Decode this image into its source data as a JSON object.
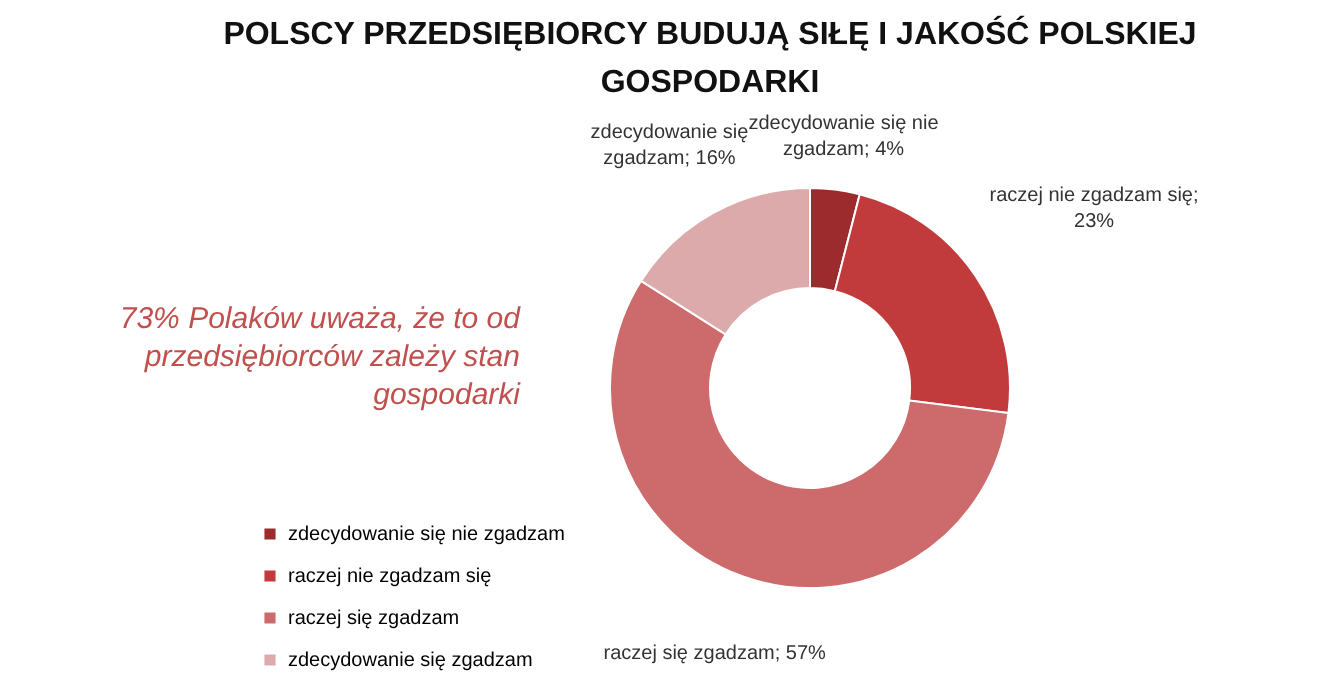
{
  "chart_data": {
    "type": "donut",
    "title": "POLSCY PRZEDSIĘBIORCY BUDUJĄ SIŁĘ I JAKOŚĆ POLSKIEJ GOSPODARKI",
    "categories": [
      "zdecydowanie się nie zgadzam",
      "raczej nie zgadzam się",
      "raczej się zgadzam",
      "zdecydowanie się zgadzam"
    ],
    "values": [
      4,
      23,
      57,
      16
    ],
    "colors": [
      "#9b2b2c",
      "#c23b3c",
      "#cd6a6b",
      "#dcaaab"
    ],
    "value_labels": [
      "zdecydowanie się nie zgadzam; 4%",
      "raczej nie zgadzam się; 23%",
      "raczej się zgadzam; 57%",
      "zdecydowanie się zgadzam; 16%"
    ],
    "legend": "bottom left",
    "annotations": [
      "73% Polaków uważa, że to od przedsiębiorców zależy stan gospodarki"
    ]
  }
}
